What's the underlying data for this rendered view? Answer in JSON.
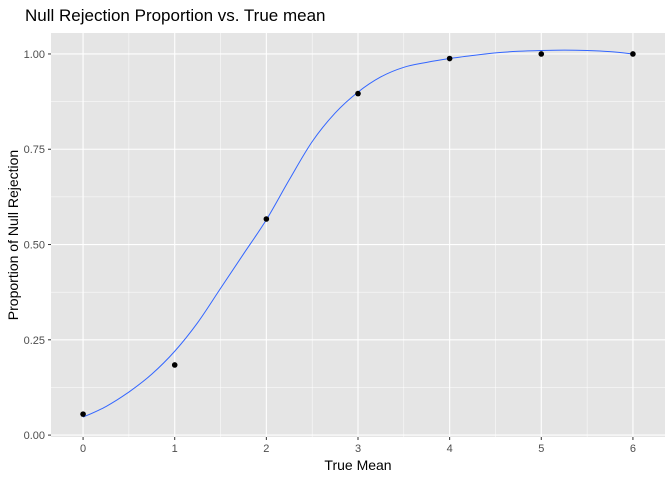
{
  "chart_data": {
    "type": "scatter",
    "title": "Null Rejection Proportion vs. True mean",
    "xlabel": "True Mean",
    "ylabel": "Proportion of Null Rejection",
    "xlim": [
      -0.35,
      6.35
    ],
    "ylim": [
      -0.005,
      1.055
    ],
    "x_ticks": [
      0,
      1,
      2,
      3,
      4,
      5,
      6
    ],
    "x_tick_labels": [
      "0",
      "1",
      "2",
      "3",
      "4",
      "5",
      "6"
    ],
    "y_ticks": [
      0.0,
      0.25,
      0.5,
      0.75,
      1.0
    ],
    "y_tick_labels": [
      "0.00",
      "0.25",
      "0.50",
      "0.75",
      "1.00"
    ],
    "grid": true,
    "series": [
      {
        "type": "points",
        "x": [
          0,
          1,
          2,
          3,
          4,
          5,
          6
        ],
        "y": [
          0.055,
          0.184,
          0.567,
          0.896,
          0.988,
          1.0,
          1.0
        ]
      },
      {
        "type": "smooth-line",
        "x": [
          0,
          0.25,
          0.5,
          0.75,
          1,
          1.25,
          1.5,
          1.75,
          2,
          2.25,
          2.5,
          2.75,
          3,
          3.25,
          3.5,
          3.75,
          4,
          4.25,
          4.5,
          4.75,
          5,
          5.25,
          5.5,
          5.75,
          6
        ],
        "y": [
          0.047,
          0.075,
          0.113,
          0.16,
          0.22,
          0.295,
          0.385,
          0.475,
          0.565,
          0.67,
          0.77,
          0.845,
          0.9,
          0.94,
          0.965,
          0.978,
          0.988,
          0.996,
          1.003,
          1.007,
          1.009,
          1.01,
          1.009,
          1.006,
          1.0
        ]
      }
    ],
    "colors": {
      "panel": "#e5e5e5",
      "grid": "#ffffff",
      "point": "#000000",
      "line": "#3366ff",
      "tick": "#333333"
    }
  }
}
